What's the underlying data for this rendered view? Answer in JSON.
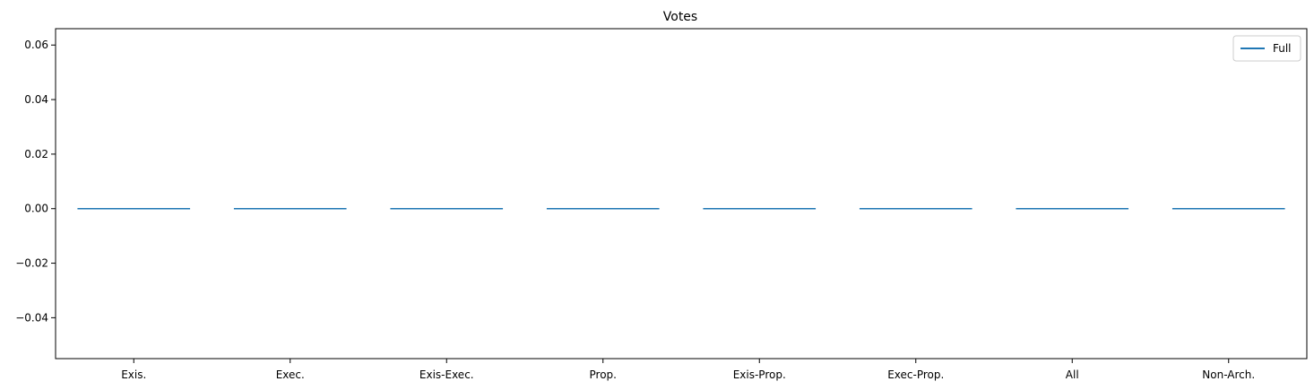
{
  "chart_data": {
    "type": "line",
    "title": "Votes",
    "xlabel": "",
    "ylabel": "",
    "categories": [
      "Exis.",
      "Exec.",
      "Exis-Exec.",
      "Prop.",
      "Exis-Prop.",
      "Exec-Prop.",
      "All",
      "Non-Arch."
    ],
    "yticks": [
      "0.06",
      "0.04",
      "0.02",
      "0.00",
      "−0.02",
      "−0.04"
    ],
    "ylim": [
      -0.055,
      0.066
    ],
    "grid": false,
    "legend_position": "top-right",
    "series": [
      {
        "name": "Full",
        "color": "#1f77b4",
        "values": [
          0,
          0,
          0,
          0,
          0,
          0,
          0,
          0
        ]
      }
    ]
  }
}
